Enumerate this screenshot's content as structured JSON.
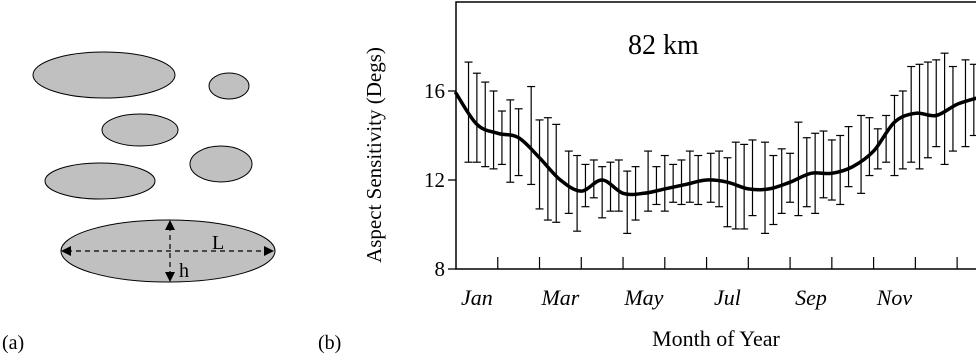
{
  "panels": {
    "a_label": "(a)",
    "b_label": "(b)"
  },
  "diagram": {
    "length_label": "L",
    "height_label": "h",
    "fill_color": "#c0c0c0",
    "stroke_color": "#000000"
  },
  "chart_data": {
    "type": "line",
    "annotation": "82 km",
    "xlabel": "Month of Year",
    "ylabel": "Aspect Sensitivity (Degs)",
    "ylim": [
      8,
      20
    ],
    "yticks": [
      8,
      12,
      16
    ],
    "xlim": [
      0,
      12.5
    ],
    "xtick_labels": [
      "Jan",
      "Mar",
      "May",
      "Jul",
      "Sep",
      "Nov"
    ],
    "xtick_label_positions": [
      0.5,
      2.5,
      4.5,
      6.5,
      8.5,
      10.5
    ],
    "minor_xticks": [
      1,
      2,
      3,
      4,
      5,
      6,
      7,
      8,
      9,
      10,
      11,
      12
    ],
    "line_color": "#000000",
    "series": [
      {
        "x": [
          0,
          0.5,
          1,
          1.5,
          2,
          2.5,
          3,
          3.5,
          4,
          4.5,
          5,
          5.5,
          6,
          6.5,
          7,
          7.5,
          8,
          8.5,
          9,
          9.5,
          10,
          10.5,
          11,
          11.5,
          12,
          12.5
        ],
        "y": [
          15.9,
          14.5,
          14.1,
          13.9,
          13.0,
          12.0,
          11.5,
          12.0,
          11.4,
          11.4,
          11.6,
          11.8,
          12.0,
          11.9,
          11.6,
          11.6,
          11.9,
          12.3,
          12.3,
          12.6,
          13.3,
          14.6,
          15.0,
          14.9,
          15.4,
          15.7
        ]
      }
    ],
    "error_bars": {
      "x": [
        0.3,
        0.5,
        0.7,
        0.9,
        1.1,
        1.3,
        1.5,
        1.8,
        2.0,
        2.2,
        2.4,
        2.7,
        2.9,
        3.1,
        3.3,
        3.5,
        3.7,
        3.9,
        4.1,
        4.3,
        4.6,
        4.8,
        5.0,
        5.2,
        5.4,
        5.6,
        5.8,
        6.1,
        6.3,
        6.5,
        6.7,
        6.9,
        7.1,
        7.4,
        7.6,
        7.8,
        8.0,
        8.2,
        8.4,
        8.6,
        8.8,
        9.0,
        9.2,
        9.4,
        9.7,
        9.9,
        10.1,
        10.3,
        10.5,
        10.7,
        10.9,
        11.1,
        11.3,
        11.5,
        11.7,
        11.9,
        12.2,
        12.4
      ],
      "low": [
        12.8,
        12.8,
        12.6,
        12.5,
        12.7,
        11.9,
        12.2,
        11.8,
        10.7,
        10.2,
        10.1,
        10.5,
        9.7,
        10.8,
        11.2,
        10.3,
        10.6,
        10.6,
        9.6,
        10.2,
        10.6,
        10.9,
        10.6,
        11.0,
        10.9,
        11.0,
        10.9,
        11.0,
        10.8,
        9.9,
        9.8,
        9.8,
        10.4,
        9.6,
        10.0,
        10.5,
        11.0,
        10.4,
        10.8,
        10.5,
        11.2,
        11.1,
        10.9,
        11.7,
        11.4,
        12.2,
        12.5,
        12.8,
        12.2,
        12.5,
        12.8,
        12.5,
        13.0,
        13.5,
        12.7,
        13.3,
        13.5,
        14.0
      ],
      "high": [
        17.3,
        16.8,
        16.4,
        16.0,
        15.1,
        15.6,
        15.2,
        16.2,
        14.7,
        14.8,
        14.5,
        13.3,
        13.1,
        12.7,
        12.9,
        12.6,
        12.8,
        12.9,
        12.4,
        12.6,
        13.3,
        12.6,
        13.1,
        12.7,
        12.9,
        13.3,
        13.1,
        13.2,
        13.3,
        13.0,
        13.7,
        13.6,
        13.8,
        13.7,
        13.1,
        13.4,
        13.2,
        14.6,
        13.9,
        14.1,
        14.2,
        13.8,
        14.0,
        14.4,
        14.9,
        14.8,
        14.3,
        14.9,
        15.8,
        16.0,
        17.1,
        17.2,
        17.3,
        17.4,
        17.7,
        17.1,
        17.4,
        17.2
      ]
    }
  }
}
